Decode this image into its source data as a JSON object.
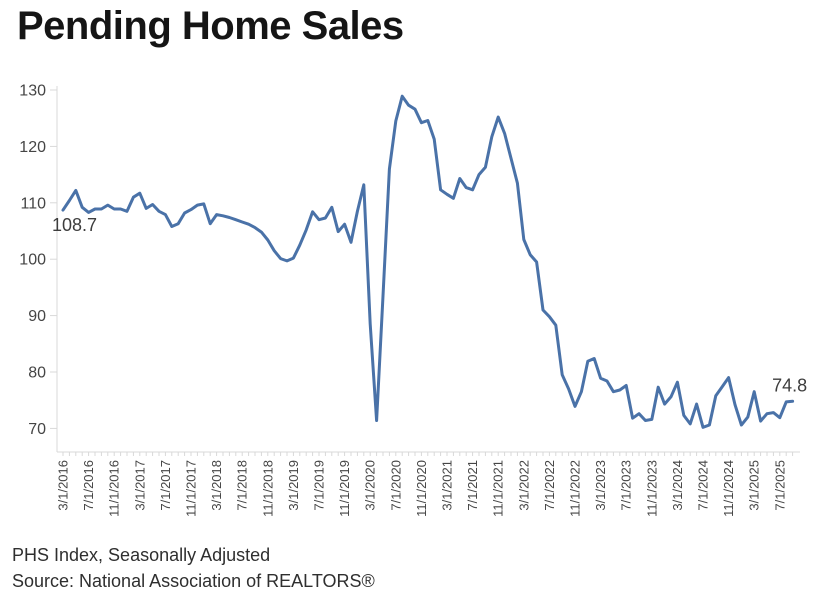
{
  "title": "Pending Home Sales",
  "footer": {
    "line1": "PHS Index, Seasonally Adjusted",
    "line2": "Source: National Association of REALTORS®"
  },
  "chart_data": {
    "type": "line",
    "series_name": "Pending Home Sales Index",
    "frequency": "monthly",
    "start": "3/1/2016",
    "end": "9/1/2025",
    "x_tick_every_months": 4,
    "x_tick_labels": [
      "3/1/2016",
      "7/1/2016",
      "11/1/2016",
      "3/1/2017",
      "7/1/2017",
      "11/1/2017",
      "3/1/2018",
      "7/1/2018",
      "11/1/2018",
      "3/1/2019",
      "7/1/2019",
      "11/1/2019",
      "3/1/2020",
      "7/1/2020",
      "11/1/2020",
      "3/1/2021",
      "7/1/2021",
      "11/1/2021",
      "3/1/2022",
      "7/1/2022",
      "11/1/2022",
      "3/1/2023",
      "7/1/2023",
      "11/1/2023",
      "3/1/2024",
      "7/1/2024",
      "11/1/2024",
      "3/1/2025",
      "7/1/2025"
    ],
    "y_ticks": [
      70,
      80,
      90,
      100,
      110,
      120,
      130
    ],
    "ylim": [
      66,
      131
    ],
    "grid": false,
    "legend": false,
    "values": [
      108.7,
      110.4,
      112.2,
      109.2,
      108.3,
      108.9,
      108.9,
      109.6,
      108.9,
      108.9,
      108.5,
      111.0,
      111.7,
      109.0,
      109.7,
      108.5,
      107.9,
      105.8,
      106.3,
      108.2,
      108.8,
      109.6,
      109.8,
      106.3,
      107.9,
      107.7,
      107.4,
      107.0,
      106.6,
      106.2,
      105.6,
      104.8,
      103.4,
      101.5,
      100.1,
      99.7,
      100.2,
      102.5,
      105.2,
      108.4,
      107.0,
      107.3,
      109.2,
      104.9,
      106.2,
      103.0,
      108.5,
      113.2,
      88.5,
      71.4,
      93.5,
      116.0,
      124.5,
      128.9,
      127.3,
      126.6,
      124.2,
      124.6,
      121.3,
      112.3,
      111.5,
      110.8,
      114.3,
      112.7,
      112.3,
      115.0,
      116.3,
      121.7,
      125.2,
      122.3,
      117.9,
      113.5,
      103.5,
      100.8,
      99.5,
      91.0,
      89.8,
      88.3,
      79.5,
      77.0,
      73.9,
      76.5,
      81.9,
      82.4,
      78.9,
      78.4,
      76.5,
      76.8,
      77.6,
      71.8,
      72.6,
      71.4,
      71.6,
      77.3,
      74.3,
      75.6,
      78.2,
      72.3,
      70.8,
      74.3,
      70.2,
      70.6,
      75.8,
      77.4,
      79.0,
      74.2,
      70.6,
      72.0,
      76.5,
      71.3,
      72.6,
      72.8,
      71.9,
      74.7,
      74.8
    ],
    "annotations": [
      {
        "text": "108.7",
        "point_index": 0,
        "position": "below-left"
      },
      {
        "text": "74.8",
        "point_index": 114,
        "position": "above"
      }
    ],
    "line_color": "#4a72a8",
    "axis_color": "#d9d9d9",
    "label_color": "#454545",
    "annotation_color": "#3d3d3d"
  }
}
